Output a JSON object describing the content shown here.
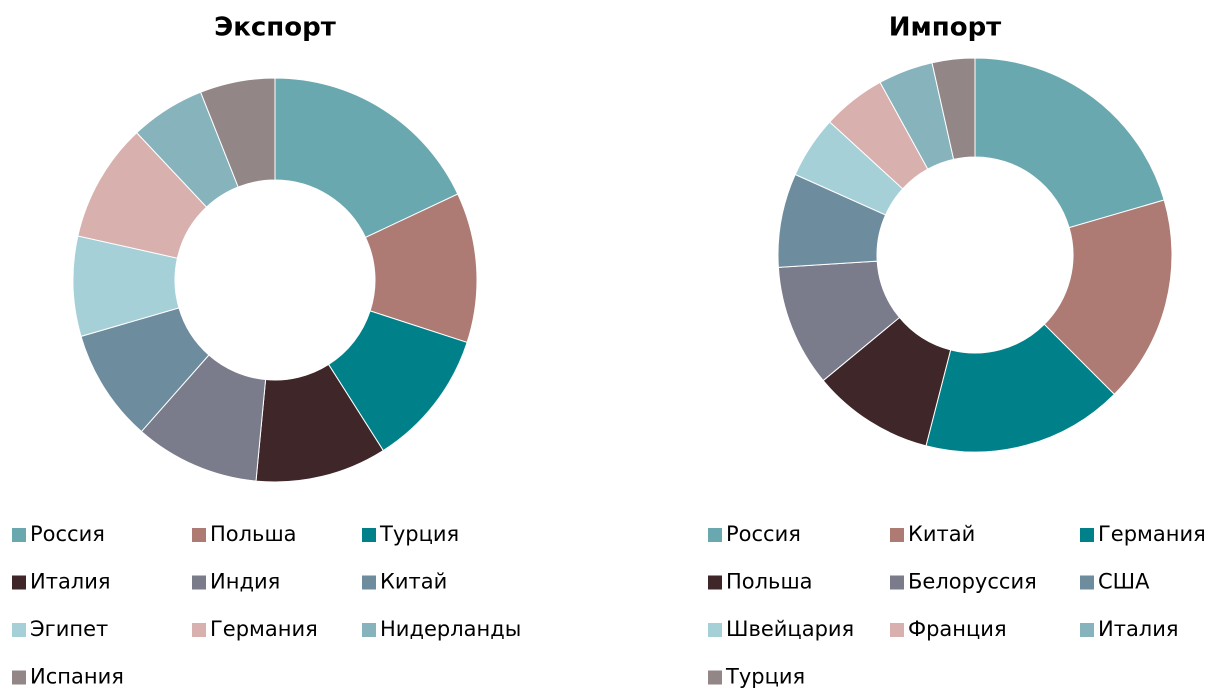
{
  "chart_data": [
    {
      "type": "donut",
      "title": "Экспорт",
      "categories": [
        "Россия",
        "Польша",
        "Турция",
        "Италия",
        "Индия",
        "Китай",
        "Эгипет",
        "Германия",
        "Нидерланды",
        "Испания"
      ],
      "values": [
        18,
        12,
        11,
        10.5,
        10,
        9,
        8,
        9.5,
        6,
        6
      ],
      "colors": [
        "#6aa8b0",
        "#ad7b73",
        "#00818a",
        "#3f2628",
        "#7a7b8b",
        "#6d8c9e",
        "#a6d0d8",
        "#d8b0ae",
        "#86b3bc",
        "#938686"
      ]
    },
    {
      "type": "donut",
      "title": "Импорт",
      "categories": [
        "Россия",
        "Китай",
        "Германия",
        "Польша",
        "Белоруссия",
        "США",
        "Швейцария",
        "Франция",
        "Италия",
        "Турция"
      ],
      "values": [
        20.5,
        17,
        16.5,
        10,
        10,
        7.7,
        5.1,
        5.2,
        4.5,
        3.5
      ],
      "colors": [
        "#6aa8b0",
        "#ad7b73",
        "#00818a",
        "#3f2628",
        "#7a7b8b",
        "#6d8c9e",
        "#a6d0d8",
        "#d8b0ae",
        "#86b3bc",
        "#938686"
      ]
    }
  ]
}
